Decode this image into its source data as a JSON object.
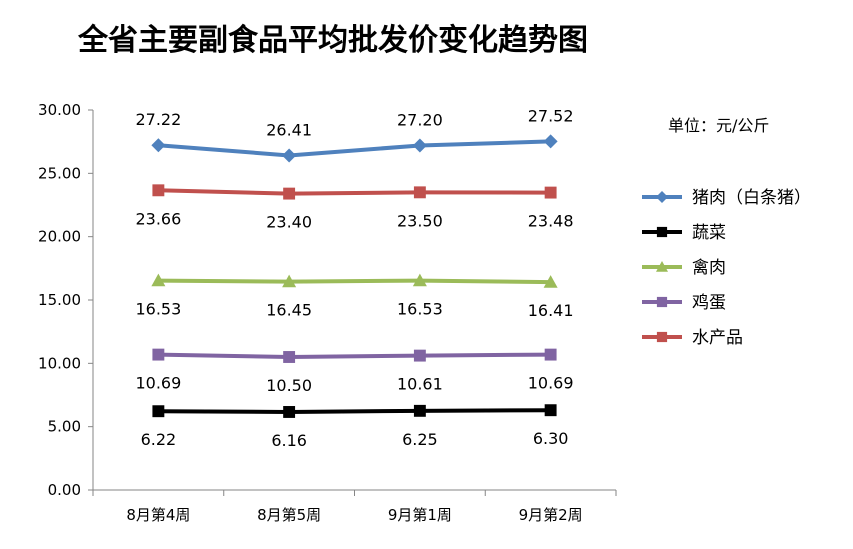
{
  "chart_data": {
    "type": "line",
    "title": "全省主要副食品平均批发价变化趋势图",
    "unit_note": "单位：元/公斤",
    "categories": [
      "8月第4周",
      "8月第5周",
      "9月第1周",
      "9月第2周"
    ],
    "ylim": [
      0,
      30
    ],
    "yticks": [
      "0.00",
      "5.00",
      "10.00",
      "15.00",
      "20.00",
      "25.00",
      "30.00"
    ],
    "grid": false,
    "legend_position": "right",
    "series": [
      {
        "name": "猪肉（白条猪）",
        "values": [
          27.22,
          26.41,
          27.2,
          27.52
        ],
        "labels": [
          "27.22",
          "26.41",
          "27.20",
          "27.52"
        ],
        "color": "#4F81BD",
        "marker": "diamond",
        "label_pos": "above"
      },
      {
        "name": "蔬菜",
        "values": [
          6.22,
          6.16,
          6.25,
          6.3
        ],
        "labels": [
          "6.22",
          "6.16",
          "6.25",
          "6.30"
        ],
        "color": "#000000",
        "marker": "square",
        "label_pos": "below"
      },
      {
        "name": "禽肉",
        "values": [
          16.53,
          16.45,
          16.53,
          16.41
        ],
        "labels": [
          "16.53",
          "16.45",
          "16.53",
          "16.41"
        ],
        "color": "#9BBB59",
        "marker": "triangle",
        "label_pos": "below"
      },
      {
        "name": "鸡蛋",
        "values": [
          10.69,
          10.5,
          10.61,
          10.69
        ],
        "labels": [
          "10.69",
          "10.50",
          "10.61",
          "10.69"
        ],
        "color": "#8064A2",
        "marker": "square",
        "label_pos": "below"
      },
      {
        "name": "水产品",
        "values": [
          23.66,
          23.4,
          23.5,
          23.48
        ],
        "labels": [
          "23.66",
          "23.40",
          "23.50",
          "23.48"
        ],
        "color": "#C0504D",
        "marker": "square",
        "label_pos": "below"
      }
    ]
  }
}
